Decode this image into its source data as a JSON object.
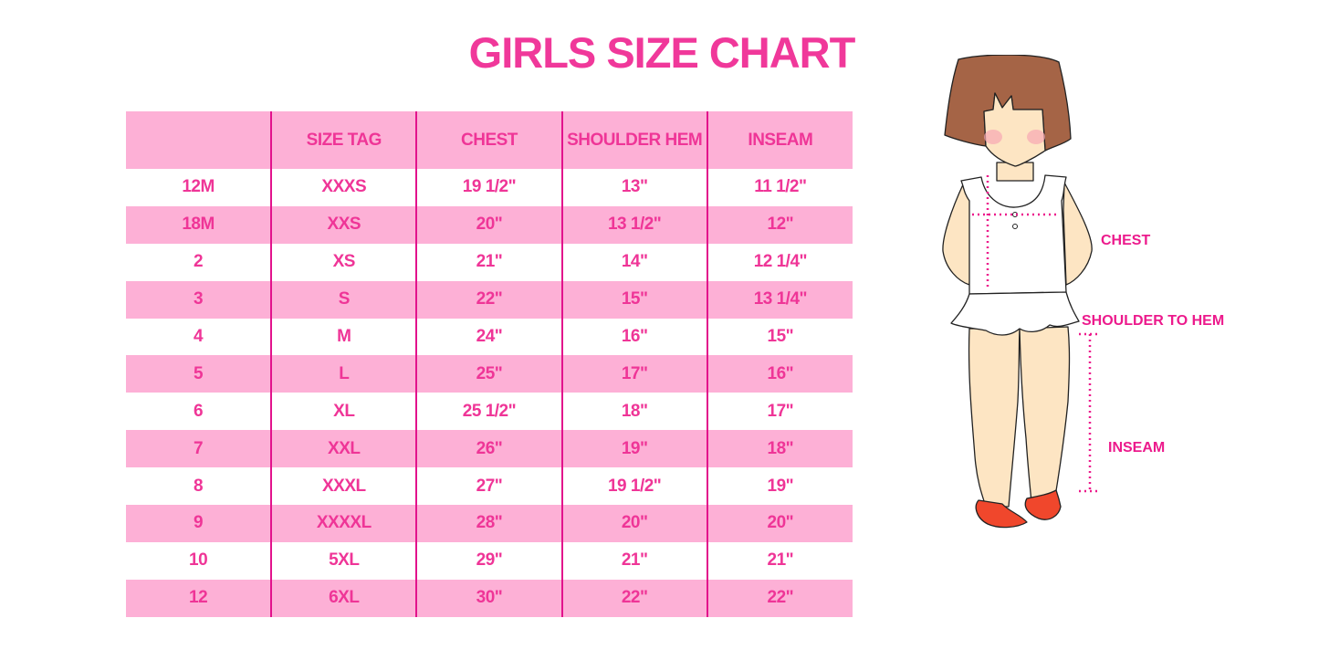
{
  "title": "GIRLS SIZE CHART",
  "table": {
    "headers": [
      "",
      "SIZE TAG",
      "CHEST",
      "SHOULDER HEM",
      "INSEAM"
    ],
    "rows": [
      [
        "12M",
        "XXXS",
        "19 1/2\"",
        "13\"",
        "11 1/2\""
      ],
      [
        "18M",
        "XXS",
        "20\"",
        "13 1/2\"",
        "12\""
      ],
      [
        "2",
        "XS",
        "21\"",
        "14\"",
        "12 1/4\""
      ],
      [
        "3",
        "S",
        "22\"",
        "15\"",
        "13 1/4\""
      ],
      [
        "4",
        "M",
        "24\"",
        "16\"",
        "15\""
      ],
      [
        "5",
        "L",
        "25\"",
        "17\"",
        "16\""
      ],
      [
        "6",
        "XL",
        "25 1/2\"",
        "18\"",
        "17\""
      ],
      [
        "7",
        "XXL",
        "26\"",
        "19\"",
        "18\""
      ],
      [
        "8",
        "XXXL",
        "27\"",
        "19 1/2\"",
        "19\""
      ],
      [
        "9",
        "XXXXL",
        "28\"",
        "20\"",
        "20\""
      ],
      [
        "10",
        "5XL",
        "29\"",
        "21\"",
        "21\""
      ],
      [
        "12",
        "6XL",
        "30\"",
        "22\"",
        "22\""
      ]
    ]
  },
  "figure": {
    "labels": {
      "chest": "CHEST",
      "shoulder_to_hem": "SHOULDER TO HEM",
      "inseam": "INSEAM"
    }
  },
  "colors": {
    "accent": "#ef3597",
    "row_pink": "#fdb0d6",
    "divider": "#e2128c",
    "measure": "#ec1a8c"
  }
}
